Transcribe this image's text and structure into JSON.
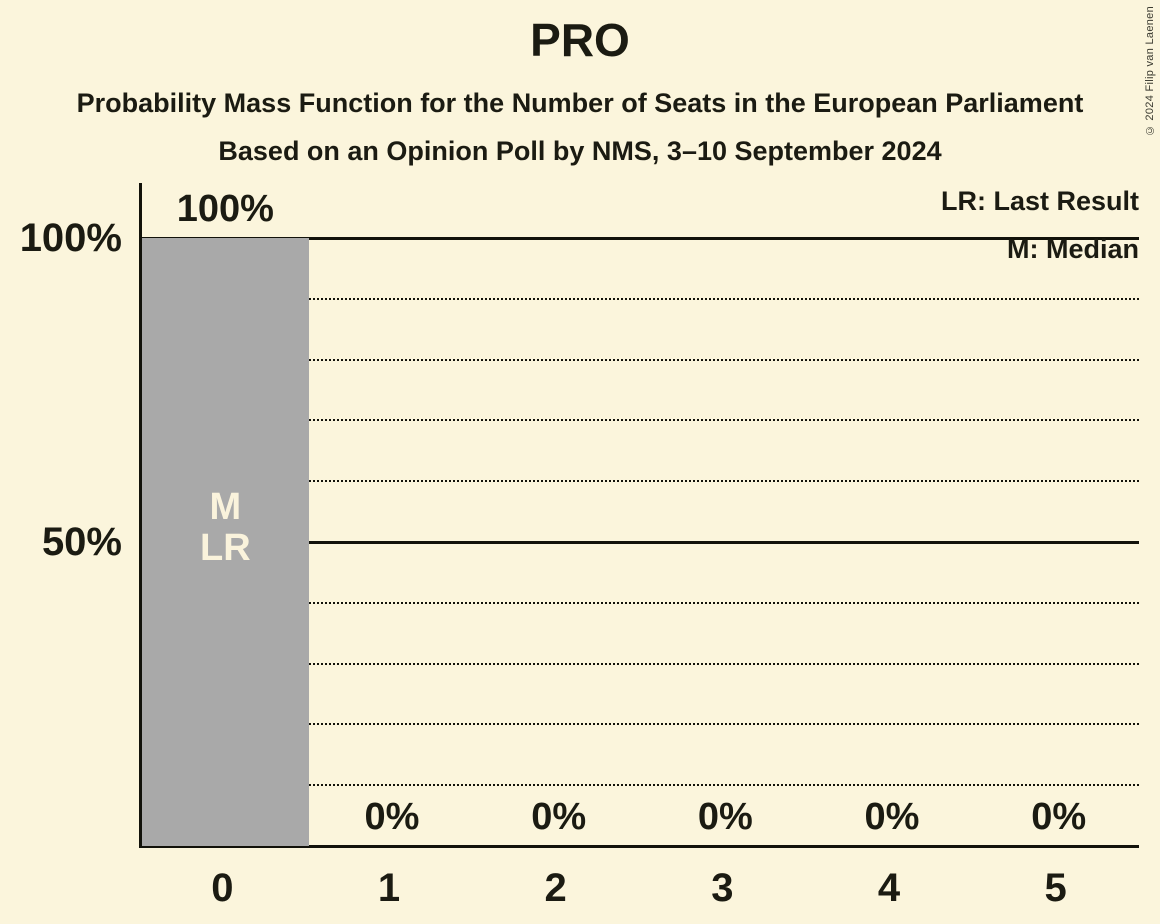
{
  "copyright": "© 2024 Filip van Laenen",
  "colors": {
    "background": "#FBF5DC",
    "bar": "#A9A9A9",
    "bar_label_text": "#FAF3DC",
    "text": "#1B1B12",
    "line": "#12120A"
  },
  "chart_data": {
    "type": "bar",
    "title": "PRO",
    "subtitle": [
      "Probability Mass Function for the Number of Seats in the European Parliament",
      "Based on an Opinion Poll by NMS, 3–10 September 2024"
    ],
    "legend": [
      "LR: Last Result",
      "M: Median"
    ],
    "legend_position": "top-right",
    "categories": [
      "0",
      "1",
      "2",
      "3",
      "4",
      "5"
    ],
    "values": [
      100,
      0,
      0,
      0,
      0,
      0
    ],
    "value_labels": [
      "100%",
      "0%",
      "0%",
      "0%",
      "0%",
      "0%"
    ],
    "bar_annotations": [
      [
        "M",
        "LR"
      ],
      [],
      [],
      [],
      [],
      []
    ],
    "median_seats": "0",
    "last_result_seats": "0",
    "xlabel": "",
    "ylabel": "",
    "ylim": [
      0,
      100
    ],
    "yticks": [
      {
        "value": 100,
        "label": "100%"
      },
      {
        "value": 50,
        "label": "50%"
      }
    ],
    "solid_gridlines": [
      100,
      50
    ],
    "dotted_gridlines": [
      90,
      80,
      70,
      60,
      40,
      30,
      20,
      10
    ],
    "grid": "horizontal"
  }
}
